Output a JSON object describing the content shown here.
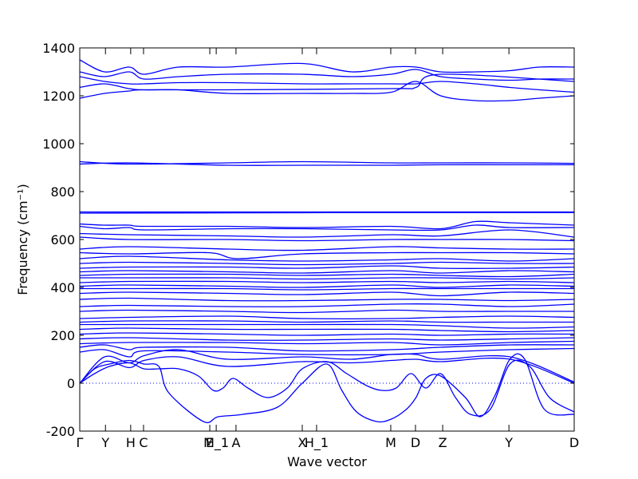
{
  "chart_data": {
    "type": "line",
    "title": "",
    "xlabel": "Wave vector",
    "ylabel": "Frequency (cm⁻¹)",
    "ylim": [
      -200,
      1400
    ],
    "yticks": [
      -200,
      0,
      200,
      400,
      600,
      800,
      1000,
      1200,
      1400
    ],
    "xlim": [
      0,
      1
    ],
    "xticks": [
      {
        "label": "Γ",
        "x": 0.0
      },
      {
        "label": "Y",
        "x": 0.052
      },
      {
        "label": "H",
        "x": 0.103
      },
      {
        "label": "C",
        "x": 0.129
      },
      {
        "label": "E",
        "x": 0.263
      },
      {
        "label": "M_1",
        "x": 0.276
      },
      {
        "label": "A",
        "x": 0.316
      },
      {
        "label": "X",
        "x": 0.45
      },
      {
        "label": "H_1",
        "x": 0.479
      },
      {
        "label": "M",
        "x": 0.629
      },
      {
        "label": "D",
        "x": 0.679
      },
      {
        "label": "Z",
        "x": 0.734
      },
      {
        "label": "Y",
        "x": 0.868
      },
      {
        "label": "D",
        "x": 1.0
      }
    ],
    "zero_line": {
      "y": 0,
      "style": "dotted",
      "color": "#0000ff"
    },
    "line_color": "#0000ff",
    "grid": false,
    "series": [
      {
        "x": [
          0,
          0.05,
          0.1,
          0.13,
          0.2,
          0.3,
          0.45,
          0.55,
          0.63,
          0.68,
          0.73,
          0.8,
          0.87,
          0.93,
          1
        ],
        "y": [
          1350,
          1300,
          1320,
          1290,
          1320,
          1320,
          1335,
          1300,
          1320,
          1320,
          1300,
          1300,
          1305,
          1320,
          1320
        ]
      },
      {
        "x": [
          0,
          0.05,
          0.1,
          0.13,
          0.2,
          0.3,
          0.45,
          0.55,
          0.63,
          0.68,
          0.73,
          0.8,
          0.87,
          0.93,
          1
        ],
        "y": [
          1300,
          1280,
          1300,
          1270,
          1280,
          1290,
          1290,
          1280,
          1290,
          1310,
          1280,
          1270,
          1265,
          1270,
          1270
        ]
      },
      {
        "x": [
          0,
          0.05,
          0.1,
          0.13,
          0.2,
          0.3,
          0.45,
          0.55,
          0.63,
          0.68,
          0.73,
          0.8,
          0.87,
          0.93,
          1
        ],
        "y": [
          1280,
          1260,
          1250,
          1250,
          1255,
          1255,
          1250,
          1250,
          1250,
          1250,
          1260,
          1250,
          1235,
          1225,
          1215
        ]
      },
      {
        "x": [
          0,
          0.05,
          0.1,
          0.13,
          0.2,
          0.3,
          0.45,
          0.55,
          0.63,
          0.68,
          0.73,
          0.8,
          0.87,
          0.93,
          1
        ],
        "y": [
          1235,
          1250,
          1230,
          1225,
          1225,
          1210,
          1210,
          1210,
          1215,
          1260,
          1200,
          1180,
          1180,
          1190,
          1200
        ]
      },
      {
        "x": [
          0,
          0.05,
          0.1,
          0.13,
          0.3,
          0.63,
          0.68,
          0.73,
          1
        ],
        "y": [
          1190,
          1210,
          1220,
          1225,
          1225,
          1230,
          1235,
          1290,
          1260
        ]
      },
      {
        "x": [
          0,
          0.1,
          0.3,
          0.45,
          0.63,
          0.73,
          0.87,
          1
        ],
        "y": [
          925,
          915,
          920,
          925,
          920,
          920,
          920,
          918
        ]
      },
      {
        "x": [
          0,
          0.1,
          0.3,
          0.45,
          0.63,
          0.73,
          0.87,
          1
        ],
        "y": [
          915,
          920,
          910,
          910,
          910,
          912,
          912,
          912
        ]
      },
      {
        "x": [
          0,
          0.5,
          1
        ],
        "y": [
          715,
          715,
          715
        ]
      },
      {
        "x": [
          0,
          0.5,
          1
        ],
        "y": [
          710,
          712,
          712
        ]
      },
      {
        "x": [
          0,
          0.05,
          0.1,
          0.13,
          0.3,
          0.45,
          0.63,
          0.73,
          0.8,
          0.87,
          1
        ],
        "y": [
          665,
          660,
          660,
          655,
          655,
          650,
          655,
          645,
          675,
          670,
          660
        ]
      },
      {
        "x": [
          0,
          0.05,
          0.1,
          0.13,
          0.3,
          0.45,
          0.63,
          0.73,
          0.8,
          0.87,
          1
        ],
        "y": [
          655,
          645,
          650,
          640,
          645,
          645,
          640,
          640,
          660,
          650,
          650
        ]
      },
      {
        "x": [
          0,
          0.1,
          0.3,
          0.45,
          0.63,
          0.73,
          0.87,
          1
        ],
        "y": [
          625,
          620,
          615,
          610,
          620,
          615,
          640,
          610
        ]
      },
      {
        "x": [
          0,
          0.1,
          0.3,
          0.45,
          0.63,
          0.73,
          0.87,
          1
        ],
        "y": [
          610,
          600,
          600,
          595,
          600,
          600,
          600,
          595
        ]
      },
      {
        "x": [
          0,
          0.1,
          0.3,
          0.45,
          0.63,
          0.73,
          0.87,
          1
        ],
        "y": [
          560,
          570,
          560,
          555,
          570,
          565,
          560,
          560
        ]
      },
      {
        "x": [
          0,
          0.1,
          0.26,
          0.32,
          0.45,
          0.63,
          0.73,
          0.87,
          1
        ],
        "y": [
          545,
          540,
          545,
          520,
          540,
          545,
          545,
          545,
          540
        ]
      },
      {
        "x": [
          0,
          0.1,
          0.3,
          0.45,
          0.63,
          0.73,
          0.87,
          1
        ],
        "y": [
          520,
          530,
          515,
          510,
          515,
          520,
          510,
          520
        ]
      },
      {
        "x": [
          0,
          0.1,
          0.3,
          0.45,
          0.63,
          0.73,
          0.87,
          1
        ],
        "y": [
          500,
          505,
          500,
          495,
          500,
          505,
          500,
          500
        ]
      },
      {
        "x": [
          0,
          0.1,
          0.3,
          0.45,
          0.63,
          0.73,
          0.87,
          1
        ],
        "y": [
          480,
          485,
          485,
          480,
          490,
          480,
          480,
          485
        ]
      },
      {
        "x": [
          0,
          0.1,
          0.3,
          0.45,
          0.63,
          0.73,
          0.87,
          1
        ],
        "y": [
          465,
          470,
          465,
          460,
          470,
          460,
          470,
          465
        ]
      },
      {
        "x": [
          0,
          0.1,
          0.3,
          0.45,
          0.63,
          0.73,
          0.87,
          1
        ],
        "y": [
          450,
          455,
          455,
          450,
          455,
          450,
          445,
          455
        ]
      },
      {
        "x": [
          0,
          0.1,
          0.3,
          0.45,
          0.63,
          0.73,
          0.87,
          1
        ],
        "y": [
          440,
          440,
          440,
          435,
          440,
          440,
          435,
          440
        ]
      },
      {
        "x": [
          0,
          0.1,
          0.3,
          0.45,
          0.63,
          0.73,
          0.87,
          1
        ],
        "y": [
          420,
          425,
          425,
          420,
          425,
          420,
          425,
          420
        ]
      },
      {
        "x": [
          0,
          0.1,
          0.3,
          0.45,
          0.63,
          0.73,
          0.87,
          1
        ],
        "y": [
          405,
          410,
          405,
          400,
          410,
          400,
          410,
          405
        ]
      },
      {
        "x": [
          0,
          0.1,
          0.3,
          0.45,
          0.63,
          0.73,
          0.87,
          1
        ],
        "y": [
          395,
          395,
          395,
          390,
          395,
          395,
          395,
          395
        ]
      },
      {
        "x": [
          0,
          0.1,
          0.3,
          0.45,
          0.63,
          0.73,
          0.87,
          1
        ],
        "y": [
          375,
          380,
          375,
          370,
          380,
          365,
          380,
          375
        ]
      },
      {
        "x": [
          0,
          0.1,
          0.3,
          0.45,
          0.63,
          0.73,
          0.87,
          1
        ],
        "y": [
          350,
          355,
          345,
          345,
          350,
          350,
          345,
          350
        ]
      },
      {
        "x": [
          0,
          0.1,
          0.3,
          0.45,
          0.63,
          0.73,
          0.87,
          1
        ],
        "y": [
          320,
          325,
          320,
          320,
          330,
          330,
          320,
          330
        ]
      },
      {
        "x": [
          0,
          0.1,
          0.3,
          0.45,
          0.63,
          0.73,
          0.87,
          1
        ],
        "y": [
          300,
          305,
          300,
          295,
          305,
          300,
          300,
          300
        ]
      },
      {
        "x": [
          0,
          0.1,
          0.3,
          0.45,
          0.63,
          0.73,
          0.87,
          1
        ],
        "y": [
          270,
          275,
          280,
          270,
          270,
          275,
          280,
          275
        ]
      },
      {
        "x": [
          0,
          0.1,
          0.3,
          0.45,
          0.63,
          0.73,
          0.87,
          1
        ],
        "y": [
          255,
          260,
          260,
          255,
          260,
          255,
          255,
          255
        ]
      },
      {
        "x": [
          0,
          0.1,
          0.3,
          0.45,
          0.63,
          0.73,
          0.87,
          1
        ],
        "y": [
          245,
          245,
          245,
          245,
          245,
          240,
          230,
          235
        ]
      },
      {
        "x": [
          0,
          0.1,
          0.3,
          0.45,
          0.63,
          0.73,
          0.87,
          1
        ],
        "y": [
          225,
          230,
          225,
          225,
          225,
          220,
          215,
          220
        ]
      },
      {
        "x": [
          0,
          0.1,
          0.3,
          0.45,
          0.63,
          0.73,
          0.87,
          1
        ],
        "y": [
          205,
          210,
          205,
          200,
          205,
          200,
          205,
          205
        ]
      },
      {
        "x": [
          0,
          0.1,
          0.3,
          0.45,
          0.63,
          0.73,
          0.87,
          1
        ],
        "y": [
          185,
          190,
          180,
          180,
          185,
          180,
          185,
          190
        ]
      },
      {
        "x": [
          0,
          0.1,
          0.3,
          0.45,
          0.63,
          0.73,
          0.87,
          1
        ],
        "y": [
          165,
          170,
          170,
          165,
          170,
          160,
          170,
          175
        ]
      },
      {
        "x": [
          0,
          0.05,
          0.1,
          0.13,
          0.3,
          0.45,
          0.63,
          0.73,
          0.87,
          1
        ],
        "y": [
          150,
          160,
          140,
          150,
          150,
          135,
          140,
          150,
          160,
          160
        ]
      },
      {
        "x": [
          0,
          0.05,
          0.1,
          0.13,
          0.3,
          0.45,
          0.63,
          0.73,
          0.87,
          1
        ],
        "y": [
          130,
          140,
          110,
          135,
          130,
          120,
          120,
          130,
          140,
          145
        ]
      },
      {
        "x": [
          0,
          0.05,
          0.1,
          0.13,
          0.2,
          0.3,
          0.45,
          0.55,
          0.63,
          0.68,
          0.73,
          0.87,
          1
        ],
        "y": [
          0,
          110,
          85,
          115,
          140,
          100,
          110,
          100,
          120,
          120,
          100,
          110,
          5
        ]
      },
      {
        "x": [
          0,
          0.05,
          0.1,
          0.13,
          0.2,
          0.3,
          0.45,
          0.55,
          0.63,
          0.68,
          0.73,
          0.87,
          1
        ],
        "y": [
          0,
          90,
          65,
          95,
          110,
          70,
          90,
          85,
          95,
          100,
          90,
          100,
          0
        ]
      },
      {
        "x": [
          0,
          0.03,
          0.06,
          0.1,
          0.13,
          0.16,
          0.18,
          0.25,
          0.28,
          0.33,
          0.4,
          0.45,
          0.5,
          0.53,
          0.56,
          0.6,
          0.63,
          0.66,
          0.68,
          0.7,
          0.73,
          0.78,
          0.81,
          0.84,
          0.87,
          0.9,
          0.94,
          1
        ],
        "y": [
          0,
          60,
          80,
          95,
          80,
          70,
          -40,
          -160,
          -140,
          -130,
          -100,
          0,
          80,
          -30,
          -120,
          -160,
          -150,
          -110,
          -60,
          20,
          30,
          -60,
          -140,
          -50,
          100,
          100,
          -110,
          -130
        ]
      },
      {
        "x": [
          0,
          0.03,
          0.06,
          0.1,
          0.13,
          0.16,
          0.2,
          0.24,
          0.27,
          0.29,
          0.31,
          0.34,
          0.38,
          0.42,
          0.45,
          0.5,
          0.54,
          0.58,
          0.61,
          0.64,
          0.67,
          0.7,
          0.73,
          0.76,
          0.79,
          0.83,
          0.87,
          0.91,
          0.95,
          1
        ],
        "y": [
          0,
          40,
          70,
          85,
          60,
          60,
          60,
          30,
          -30,
          -20,
          20,
          -20,
          -60,
          -20,
          60,
          90,
          40,
          -10,
          -30,
          -20,
          40,
          -20,
          40,
          -60,
          -130,
          -110,
          80,
          70,
          -60,
          -120
        ]
      }
    ]
  }
}
